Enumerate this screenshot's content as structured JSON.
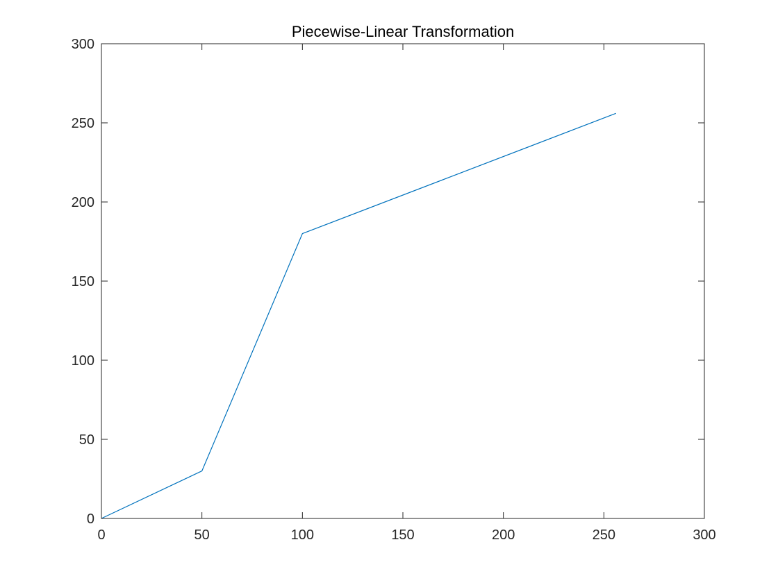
{
  "chart_data": {
    "type": "line",
    "title": "Piecewise-Linear Transformation",
    "xlabel": "",
    "ylabel": "",
    "xlim": [
      0,
      300
    ],
    "ylim": [
      0,
      300
    ],
    "xticks": [
      0,
      50,
      100,
      150,
      200,
      250,
      300
    ],
    "yticks": [
      0,
      50,
      100,
      150,
      200,
      250,
      300
    ],
    "grid": false,
    "legend": "none",
    "series": [
      {
        "color": "#0072BD",
        "x": [
          0,
          50,
          100,
          256
        ],
        "y": [
          0,
          30,
          180,
          256
        ]
      }
    ]
  }
}
